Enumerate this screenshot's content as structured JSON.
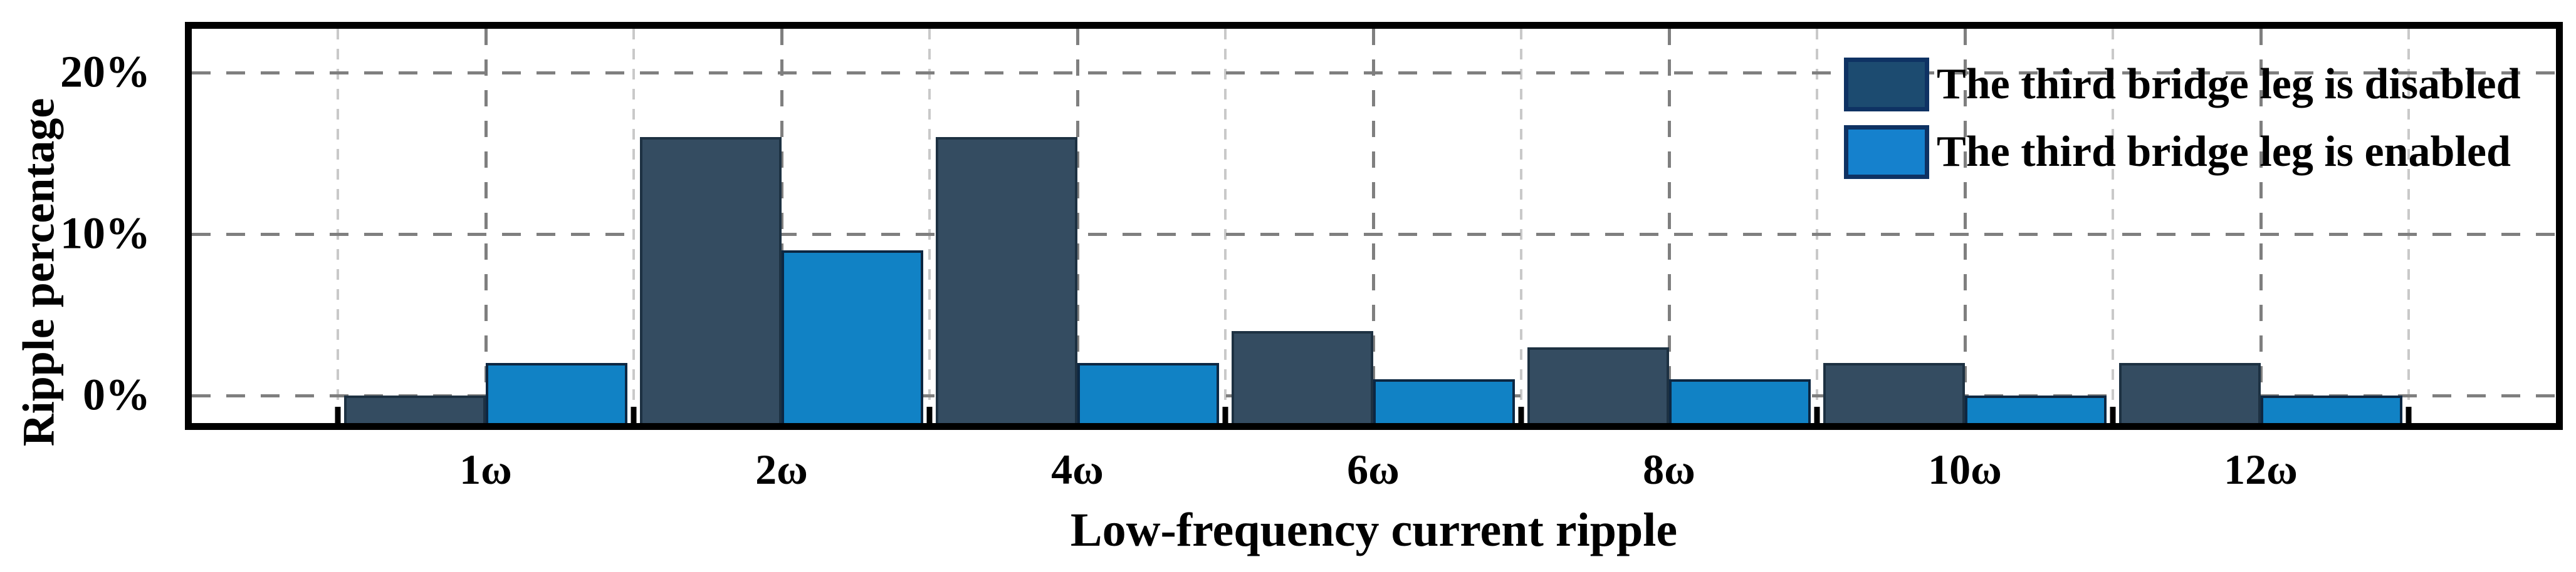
{
  "chart_data": {
    "type": "bar",
    "categories": [
      "1ω",
      "2ω",
      "4ω",
      "6ω",
      "8ω",
      "10ω",
      "12ω"
    ],
    "series": [
      {
        "name": "The third bridge leg is disabled",
        "values": [
          0,
          16,
          16,
          4,
          3,
          2,
          2
        ],
        "color": "#344c61",
        "edge_color": "#1d3142",
        "swatch_color": "#1c4b70",
        "swatch_border": "#0e3263"
      },
      {
        "name": "The third bridge leg is enabled",
        "values": [
          2,
          9,
          2,
          1,
          1,
          0,
          0
        ],
        "color": "#1182c5",
        "edge_color": "#0d2742",
        "swatch_color": "#1581cd",
        "swatch_border": "#0e3263"
      }
    ],
    "xlabel": "Low-frequency current ripple",
    "ylabel": "Ripple percentage",
    "y_ticks": [
      {
        "value": 0,
        "label": "0%"
      },
      {
        "value": 10,
        "label": "10%"
      },
      {
        "value": 20,
        "label": "20%"
      }
    ],
    "ylim": [
      -1.7,
      22.7
    ],
    "grid": {
      "horizontal": true,
      "vertical": true,
      "major_color": "#7f7f7f",
      "minor_color": "#c9c9c9"
    },
    "frame_color": "#000000",
    "background": "#ffffff",
    "legend_position": "upper right"
  }
}
